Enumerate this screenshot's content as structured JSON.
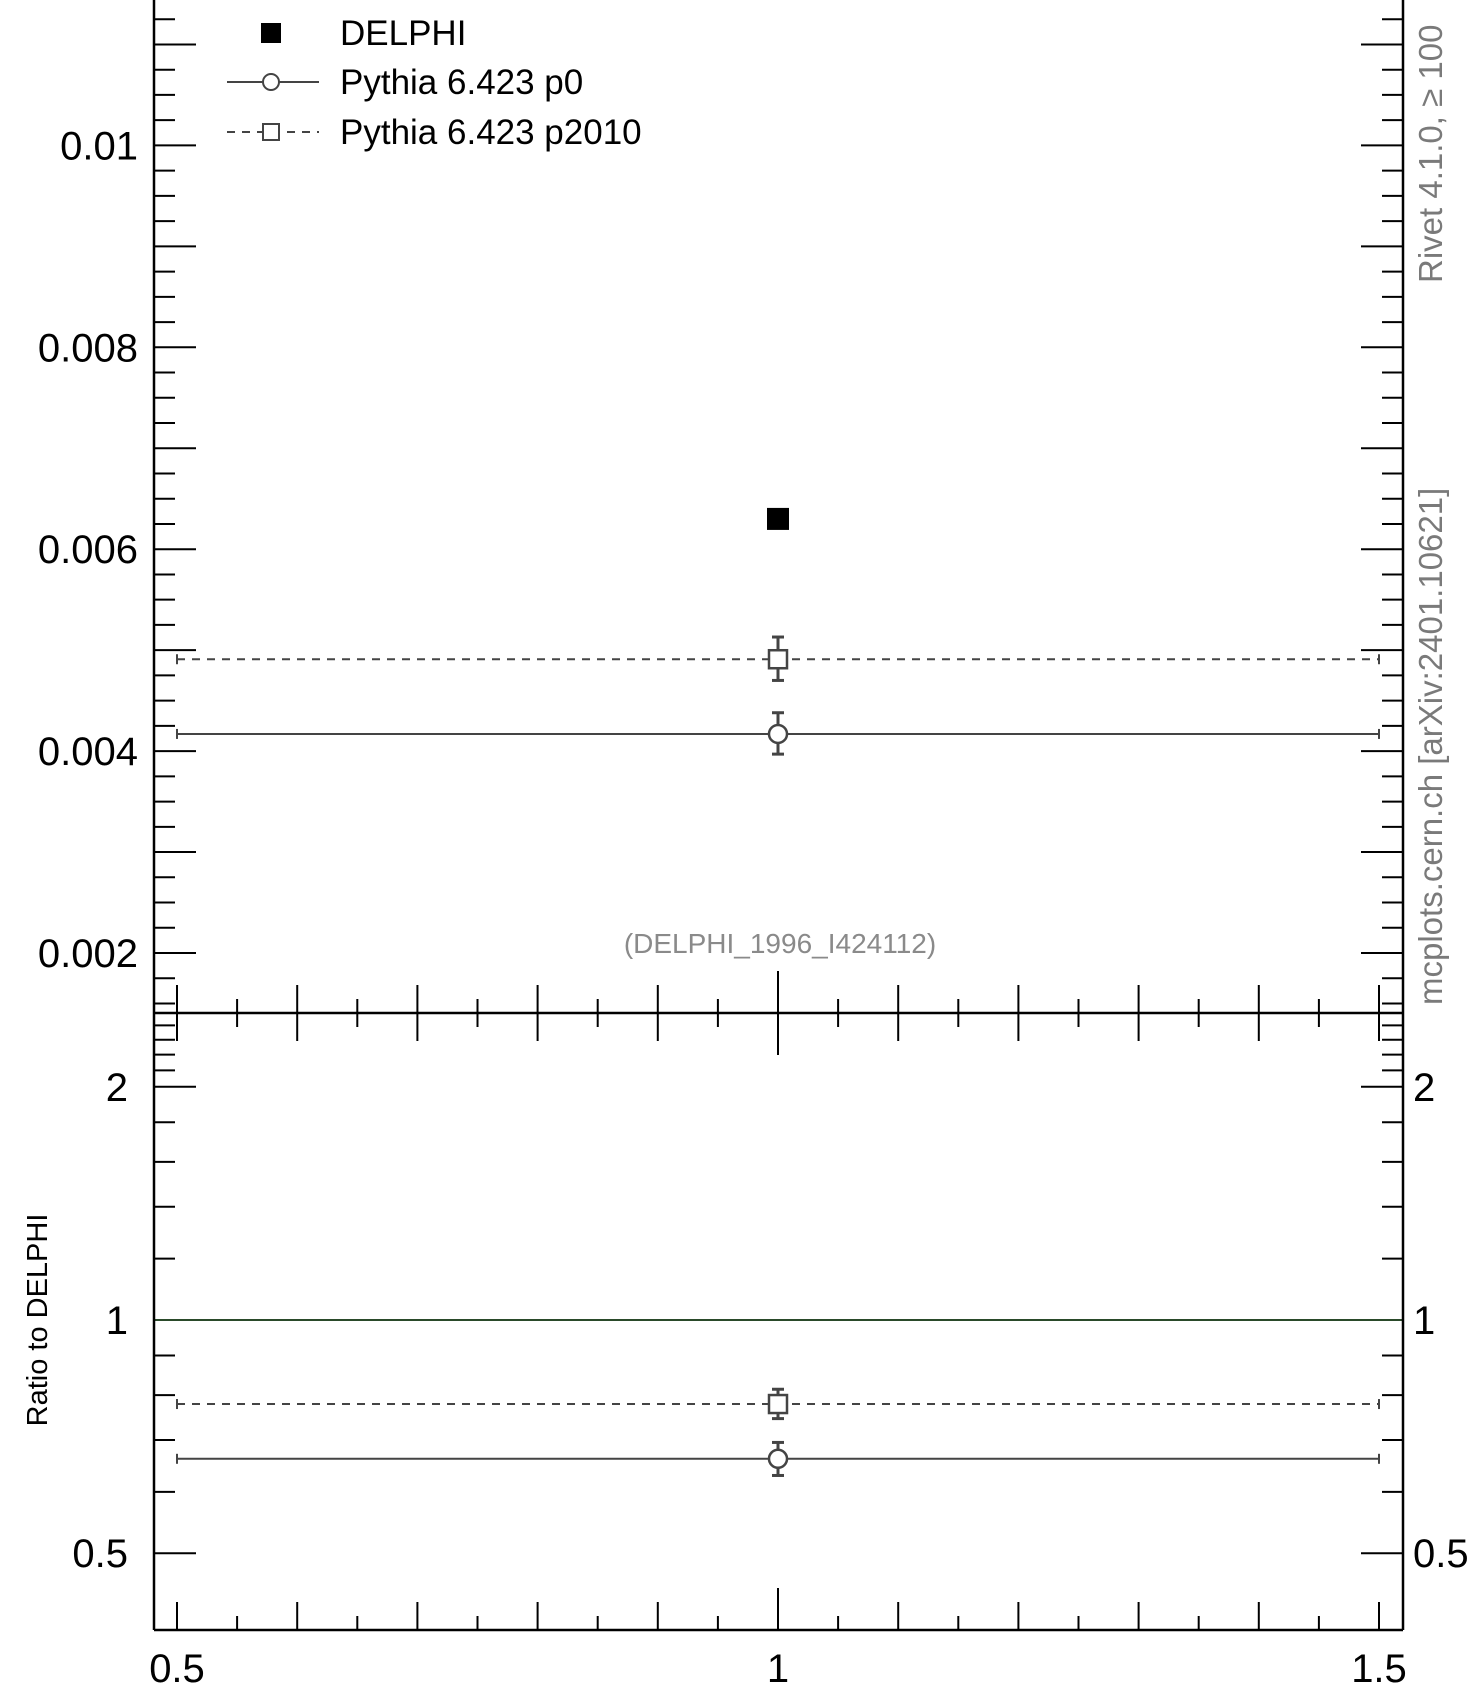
{
  "chart_data": [
    {
      "type": "scatter",
      "panel": "main",
      "title": "",
      "xlabel": "",
      "ylabel": "",
      "xlim": [
        0.5,
        1.5
      ],
      "ylim": [
        0.0015,
        0.0115
      ],
      "y_ticks": [
        "0.002",
        "0.004",
        "0.006",
        "0.008",
        "0.01"
      ],
      "annotation": "(DELPHI_1996_I424112)",
      "legend_position": "top-left",
      "series": [
        {
          "name": "DELPHI",
          "style": "filled-square",
          "points": [
            {
              "x": 1.0,
              "y": 0.0063
            }
          ]
        },
        {
          "name": "Pythia 6.423 p0",
          "style": "solid-circle",
          "points": [
            {
              "x": 1.0,
              "y": 0.00417,
              "xerr": [
                0.5,
                1.5
              ],
              "yerr": [
                0.00397,
                0.00438
              ]
            }
          ]
        },
        {
          "name": "Pythia 6.423 p2010",
          "style": "dashed-square",
          "points": [
            {
              "x": 1.0,
              "y": 0.00491,
              "xerr": [
                0.5,
                1.5
              ],
              "yerr": [
                0.0047,
                0.00513
              ]
            }
          ]
        }
      ]
    },
    {
      "type": "scatter",
      "panel": "ratio",
      "title": "",
      "xlabel": "",
      "ylabel": "Ratio to DELPHI",
      "xlim": [
        0.5,
        1.5
      ],
      "ylim": [
        0.4,
        2.4
      ],
      "y_scale": "log",
      "x_ticks": [
        "0.5",
        "1",
        "1.5"
      ],
      "y_ticks": [
        "0.5",
        "1",
        "2"
      ],
      "reference_line": 1.0,
      "series": [
        {
          "name": "Pythia 6.423 p0",
          "style": "solid-circle",
          "points": [
            {
              "x": 1.0,
              "y": 0.662,
              "xerr": [
                0.5,
                1.5
              ],
              "yerr": [
                0.63,
                0.695
              ]
            }
          ]
        },
        {
          "name": "Pythia 6.423 p2010",
          "style": "dashed-square",
          "points": [
            {
              "x": 1.0,
              "y": 0.779,
              "xerr": [
                0.5,
                1.5
              ],
              "yerr": [
                0.746,
                0.814
              ]
            }
          ]
        }
      ]
    }
  ],
  "watermark": {
    "text_lower": "mcplots.cern.ch [arXiv:2401.10621]",
    "text_upper": "Rivet 4.1.0, ≥ 100"
  },
  "colors": {
    "data": "#000000",
    "mc": "#444444",
    "reference_line": "#2a4a2a",
    "watermark": "#7a7a7a"
  }
}
